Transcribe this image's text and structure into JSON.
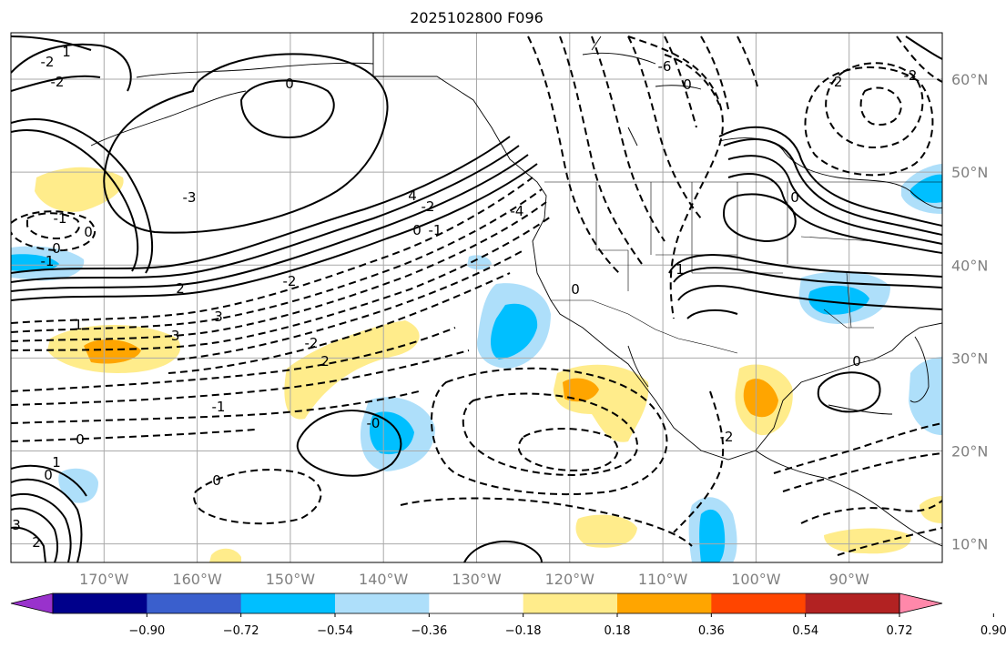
{
  "title": "2025102800 F096",
  "map": {
    "lon_range": [
      -180,
      -80
    ],
    "lat_range": [
      8,
      65
    ],
    "lat_labels": [
      "10°N",
      "20°N",
      "30°N",
      "40°N",
      "50°N",
      "60°N"
    ],
    "lon_labels": [
      "170°W",
      "160°W",
      "150°W",
      "140°W",
      "130°W",
      "120°W",
      "110°W",
      "100°W",
      "90°W"
    ],
    "contour_labels": [
      "-2",
      "1",
      "-2",
      "0",
      "-3",
      "4",
      "-2",
      "0",
      "-1",
      "2",
      "-4",
      "-6",
      "0",
      "-2",
      "3",
      "0",
      "-2",
      "2",
      "-1",
      "1",
      "-3",
      "-2",
      "-1",
      "0",
      "0",
      "-2",
      "-1",
      "0",
      "1",
      "0",
      "2",
      "3",
      "0",
      "-0",
      "1",
      "0",
      "0",
      "-2"
    ]
  },
  "colorbar": {
    "ticks": [
      "−0.90",
      "−0.72",
      "−0.54",
      "−0.36",
      "−0.18",
      "0.18",
      "0.36",
      "0.54",
      "0.72",
      "0.90"
    ],
    "colors": [
      "#9932CC",
      "#00008B",
      "#3A5FCD",
      "#00BFFF",
      "#AEDFFA",
      "#FFFFFF",
      "#FFEC8B",
      "#FFA500",
      "#FF4500",
      "#B22222",
      "#FF88AA"
    ]
  }
}
